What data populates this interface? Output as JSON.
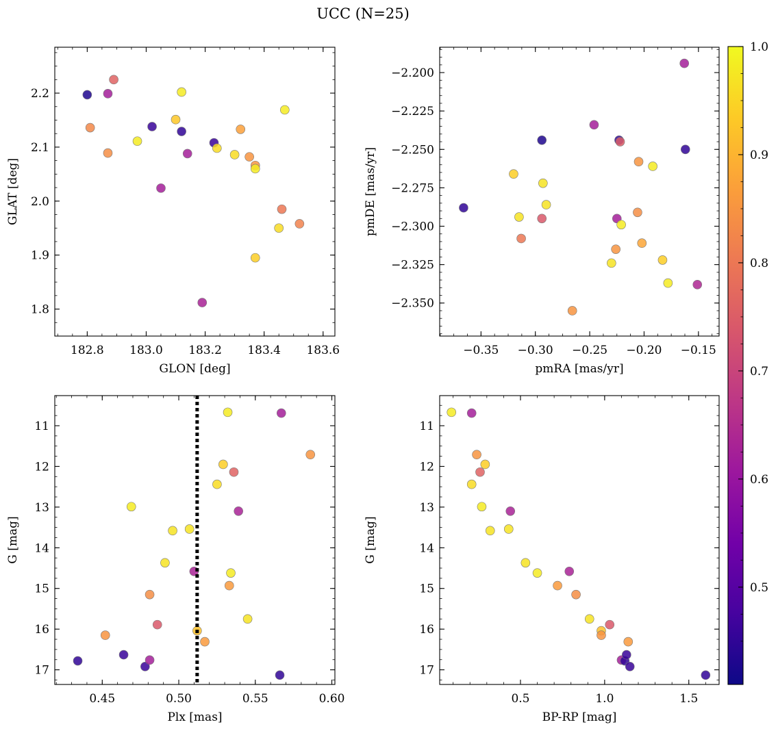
{
  "figure": {
    "title": "UCC (N=25)"
  },
  "colorbar": {
    "cmap": "plasma",
    "vmin": 0.41,
    "vmax": 1.0,
    "ticks": [
      "0.5",
      "0.6",
      "0.7",
      "0.8",
      "0.9",
      "1.0"
    ],
    "tick_values": [
      0.5,
      0.6,
      0.7,
      0.8,
      0.9,
      1.0
    ],
    "stops": [
      "#0d0887",
      "#46039f",
      "#7201a8",
      "#9c179e",
      "#bd3786",
      "#d8576b",
      "#ed7953",
      "#fb9f3a",
      "#fdca26",
      "#f0f921"
    ]
  },
  "chart_data": [
    {
      "id": "glon-glat",
      "type": "scatter",
      "xlabel": "GLON [deg]",
      "ylabel": "GLAT [deg]",
      "xlim": [
        182.69,
        183.64
      ],
      "ylim": [
        1.75,
        2.285
      ],
      "y_inverted": false,
      "xticks": [
        182.8,
        183.0,
        183.2,
        183.4,
        183.6
      ],
      "xtick_labels": [
        "182.8",
        "183.0",
        "183.2",
        "183.4",
        "183.6"
      ],
      "yticks": [
        1.8,
        1.9,
        2.0,
        2.1,
        2.2
      ],
      "ytick_labels": [
        "1.8",
        "1.9",
        "2.0",
        "2.1",
        "2.2"
      ],
      "x_minor_step": 0.05,
      "y_minor_step": 0.025,
      "vline": null,
      "points": [
        {
          "x": 182.8,
          "y": 2.197,
          "c": 0.43
        },
        {
          "x": 182.81,
          "y": 2.136,
          "c": 0.83
        },
        {
          "x": 182.87,
          "y": 2.199,
          "c": 0.62
        },
        {
          "x": 182.87,
          "y": 2.089,
          "c": 0.84
        },
        {
          "x": 182.89,
          "y": 2.225,
          "c": 0.76
        },
        {
          "x": 182.97,
          "y": 2.111,
          "c": 0.98
        },
        {
          "x": 183.02,
          "y": 2.138,
          "c": 0.46
        },
        {
          "x": 183.05,
          "y": 2.024,
          "c": 0.62
        },
        {
          "x": 183.1,
          "y": 2.151,
          "c": 0.93
        },
        {
          "x": 183.12,
          "y": 2.129,
          "c": 0.45
        },
        {
          "x": 183.12,
          "y": 2.202,
          "c": 0.98
        },
        {
          "x": 183.14,
          "y": 2.088,
          "c": 0.62
        },
        {
          "x": 183.19,
          "y": 1.812,
          "c": 0.63
        },
        {
          "x": 183.23,
          "y": 2.108,
          "c": 0.46
        },
        {
          "x": 183.24,
          "y": 2.098,
          "c": 0.96
        },
        {
          "x": 183.3,
          "y": 2.086,
          "c": 0.96
        },
        {
          "x": 183.32,
          "y": 2.133,
          "c": 0.87
        },
        {
          "x": 183.35,
          "y": 2.082,
          "c": 0.85
        },
        {
          "x": 183.37,
          "y": 2.066,
          "c": 0.85
        },
        {
          "x": 183.37,
          "y": 2.06,
          "c": 0.98
        },
        {
          "x": 183.37,
          "y": 1.895,
          "c": 0.94
        },
        {
          "x": 183.45,
          "y": 1.95,
          "c": 0.96
        },
        {
          "x": 183.46,
          "y": 1.985,
          "c": 0.8
        },
        {
          "x": 183.47,
          "y": 2.169,
          "c": 0.98
        },
        {
          "x": 183.52,
          "y": 1.958,
          "c": 0.82
        }
      ]
    },
    {
      "id": "pmra-pmde",
      "type": "scatter",
      "xlabel": "pmRA [mas/yr]",
      "ylabel": "pmDE [mas/yr]",
      "xlim": [
        -0.388,
        -0.131
      ],
      "ylim": [
        -2.3715,
        -2.1835
      ],
      "y_inverted": false,
      "xticks": [
        -0.35,
        -0.3,
        -0.25,
        -0.2,
        -0.15
      ],
      "xtick_labels": [
        "−0.35",
        "−0.30",
        "−0.25",
        "−0.20",
        "−0.15"
      ],
      "yticks": [
        -2.35,
        -2.325,
        -2.3,
        -2.275,
        -2.25,
        -2.225,
        -2.2
      ],
      "ytick_labels": [
        "−2.350",
        "−2.325",
        "−2.300",
        "−2.275",
        "−2.250",
        "−2.225",
        "−2.200"
      ],
      "x_minor_step": 0.0125,
      "y_minor_step": 0.005,
      "vline": null,
      "points": [
        {
          "x": -0.366,
          "y": -2.288,
          "c": 0.45
        },
        {
          "x": -0.32,
          "y": -2.266,
          "c": 0.94
        },
        {
          "x": -0.315,
          "y": -2.294,
          "c": 0.97
        },
        {
          "x": -0.313,
          "y": -2.308,
          "c": 0.8
        },
        {
          "x": -0.294,
          "y": -2.244,
          "c": 0.43
        },
        {
          "x": -0.294,
          "y": -2.295,
          "c": 0.74
        },
        {
          "x": -0.293,
          "y": -2.272,
          "c": 0.97
        },
        {
          "x": -0.29,
          "y": -2.286,
          "c": 0.97
        },
        {
          "x": -0.266,
          "y": -2.355,
          "c": 0.85
        },
        {
          "x": -0.246,
          "y": -2.234,
          "c": 0.62
        },
        {
          "x": -0.23,
          "y": -2.324,
          "c": 0.97
        },
        {
          "x": -0.226,
          "y": -2.315,
          "c": 0.85
        },
        {
          "x": -0.225,
          "y": -2.295,
          "c": 0.62
        },
        {
          "x": -0.223,
          "y": -2.244,
          "c": 0.45
        },
        {
          "x": -0.222,
          "y": -2.245,
          "c": 0.75
        },
        {
          "x": -0.221,
          "y": -2.299,
          "c": 0.98
        },
        {
          "x": -0.206,
          "y": -2.291,
          "c": 0.84
        },
        {
          "x": -0.205,
          "y": -2.258,
          "c": 0.85
        },
        {
          "x": -0.202,
          "y": -2.311,
          "c": 0.88
        },
        {
          "x": -0.192,
          "y": -2.261,
          "c": 0.98
        },
        {
          "x": -0.183,
          "y": -2.322,
          "c": 0.94
        },
        {
          "x": -0.178,
          "y": -2.337,
          "c": 0.98
        },
        {
          "x": -0.163,
          "y": -2.194,
          "c": 0.62
        },
        {
          "x": -0.162,
          "y": -2.25,
          "c": 0.45
        },
        {
          "x": -0.151,
          "y": -2.338,
          "c": 0.64
        }
      ]
    },
    {
      "id": "plx-g",
      "type": "scatter",
      "xlabel": "Plx [mas]",
      "ylabel": "G [mag]",
      "xlim": [
        0.419,
        0.602
      ],
      "ylim": [
        17.36,
        10.26
      ],
      "y_inverted": true,
      "xticks": [
        0.45,
        0.5,
        0.55,
        0.6
      ],
      "xtick_labels": [
        "0.45",
        "0.50",
        "0.55",
        "0.60"
      ],
      "yticks": [
        11,
        12,
        13,
        14,
        15,
        16,
        17
      ],
      "ytick_labels": [
        "11",
        "12",
        "13",
        "14",
        "15",
        "16",
        "17"
      ],
      "x_minor_step": 0.01,
      "y_minor_step": 0.25,
      "vline": {
        "x": 0.512,
        "style": "dotted"
      },
      "points": [
        {
          "x": 0.434,
          "y": 16.78,
          "c": 0.45
        },
        {
          "x": 0.452,
          "y": 16.15,
          "c": 0.85
        },
        {
          "x": 0.464,
          "y": 16.63,
          "c": 0.46
        },
        {
          "x": 0.469,
          "y": 12.99,
          "c": 0.98
        },
        {
          "x": 0.478,
          "y": 16.92,
          "c": 0.46
        },
        {
          "x": 0.481,
          "y": 15.15,
          "c": 0.84
        },
        {
          "x": 0.481,
          "y": 16.76,
          "c": 0.62
        },
        {
          "x": 0.486,
          "y": 15.89,
          "c": 0.74
        },
        {
          "x": 0.491,
          "y": 14.37,
          "c": 0.97
        },
        {
          "x": 0.496,
          "y": 13.58,
          "c": 0.97
        },
        {
          "x": 0.507,
          "y": 13.54,
          "c": 0.97
        },
        {
          "x": 0.51,
          "y": 14.58,
          "c": 0.63
        },
        {
          "x": 0.512,
          "y": 16.04,
          "c": 0.92
        },
        {
          "x": 0.517,
          "y": 16.31,
          "c": 0.86
        },
        {
          "x": 0.525,
          "y": 12.44,
          "c": 0.96
        },
        {
          "x": 0.529,
          "y": 11.95,
          "c": 0.94
        },
        {
          "x": 0.532,
          "y": 10.67,
          "c": 0.98
        },
        {
          "x": 0.533,
          "y": 14.93,
          "c": 0.86
        },
        {
          "x": 0.534,
          "y": 14.62,
          "c": 0.98
        },
        {
          "x": 0.536,
          "y": 12.14,
          "c": 0.76
        },
        {
          "x": 0.539,
          "y": 13.1,
          "c": 0.63
        },
        {
          "x": 0.545,
          "y": 15.75,
          "c": 0.97
        },
        {
          "x": 0.566,
          "y": 17.13,
          "c": 0.45
        },
        {
          "x": 0.567,
          "y": 10.69,
          "c": 0.62
        },
        {
          "x": 0.586,
          "y": 11.71,
          "c": 0.85
        }
      ]
    },
    {
      "id": "bprp-g",
      "type": "scatter",
      "xlabel": "BP-RP [mag]",
      "ylabel": "G [mag]",
      "xlim": [
        0.02,
        1.68
      ],
      "ylim": [
        17.36,
        10.26
      ],
      "y_inverted": true,
      "xticks": [
        0.5,
        1.0,
        1.5
      ],
      "xtick_labels": [
        "0.5",
        "1.0",
        "1.5"
      ],
      "yticks": [
        11,
        12,
        13,
        14,
        15,
        16,
        17
      ],
      "ytick_labels": [
        "11",
        "12",
        "13",
        "14",
        "15",
        "16",
        "17"
      ],
      "x_minor_step": 0.1,
      "y_minor_step": 0.25,
      "vline": null,
      "points": [
        {
          "x": 0.09,
          "y": 10.67,
          "c": 0.98
        },
        {
          "x": 0.21,
          "y": 10.69,
          "c": 0.62
        },
        {
          "x": 0.21,
          "y": 12.44,
          "c": 0.96
        },
        {
          "x": 0.24,
          "y": 11.71,
          "c": 0.85
        },
        {
          "x": 0.26,
          "y": 12.14,
          "c": 0.76
        },
        {
          "x": 0.27,
          "y": 12.99,
          "c": 0.98
        },
        {
          "x": 0.29,
          "y": 11.95,
          "c": 0.94
        },
        {
          "x": 0.32,
          "y": 13.58,
          "c": 0.97
        },
        {
          "x": 0.43,
          "y": 13.54,
          "c": 0.97
        },
        {
          "x": 0.44,
          "y": 13.1,
          "c": 0.63
        },
        {
          "x": 0.53,
          "y": 14.37,
          "c": 0.97
        },
        {
          "x": 0.6,
          "y": 14.62,
          "c": 0.98
        },
        {
          "x": 0.72,
          "y": 14.93,
          "c": 0.86
        },
        {
          "x": 0.79,
          "y": 14.58,
          "c": 0.63
        },
        {
          "x": 0.83,
          "y": 15.15,
          "c": 0.84
        },
        {
          "x": 0.91,
          "y": 15.75,
          "c": 0.97
        },
        {
          "x": 0.98,
          "y": 16.04,
          "c": 0.92
        },
        {
          "x": 0.98,
          "y": 16.15,
          "c": 0.85
        },
        {
          "x": 1.03,
          "y": 15.89,
          "c": 0.74
        },
        {
          "x": 1.1,
          "y": 16.76,
          "c": 0.62
        },
        {
          "x": 1.12,
          "y": 16.78,
          "c": 0.45
        },
        {
          "x": 1.13,
          "y": 16.63,
          "c": 0.46
        },
        {
          "x": 1.14,
          "y": 16.31,
          "c": 0.86
        },
        {
          "x": 1.15,
          "y": 16.92,
          "c": 0.46
        },
        {
          "x": 1.6,
          "y": 17.13,
          "c": 0.45
        }
      ]
    }
  ]
}
